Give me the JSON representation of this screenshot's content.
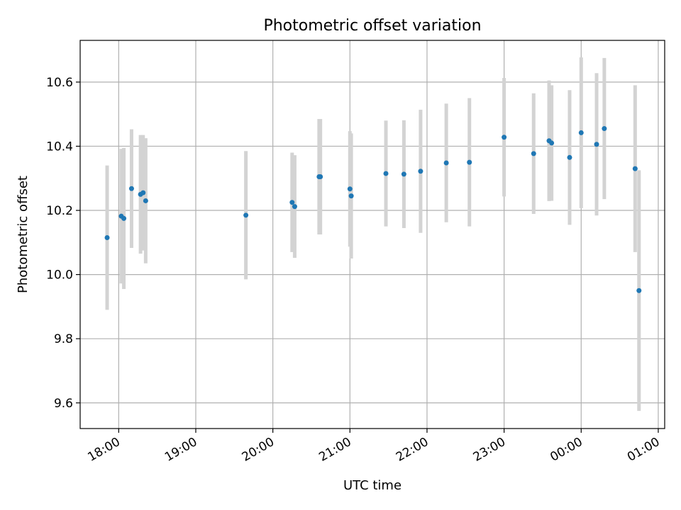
{
  "chart_data": {
    "type": "scatter",
    "title": "Photometric offset variation",
    "xlabel": "UTC time",
    "ylabel": "Photometric offset",
    "x_axis_type": "time",
    "xlim": [
      "17:30",
      "01:05"
    ],
    "ylim": [
      9.52,
      10.73
    ],
    "x_ticks": [
      "18:00",
      "19:00",
      "20:00",
      "21:00",
      "22:00",
      "23:00",
      "00:00",
      "01:00"
    ],
    "y_ticks": [
      "9.6",
      "9.8",
      "10.0",
      "10.2",
      "10.4",
      "10.6"
    ],
    "grid": true,
    "point_color": "#1f77b4",
    "errorbar_color": "#d3d3d3",
    "series": [
      {
        "points": [
          {
            "time": "17:51",
            "y": 10.115,
            "err": 0.225
          },
          {
            "time": "18:02",
            "y": 10.182,
            "err": 0.21
          },
          {
            "time": "18:04",
            "y": 10.175,
            "err": 0.22
          },
          {
            "time": "18:10",
            "y": 10.268,
            "err": 0.185
          },
          {
            "time": "18:17",
            "y": 10.25,
            "err": 0.185
          },
          {
            "time": "18:19",
            "y": 10.255,
            "err": 0.18
          },
          {
            "time": "18:21",
            "y": 10.23,
            "err": 0.195
          },
          {
            "time": "19:39",
            "y": 10.185,
            "err": 0.2
          },
          {
            "time": "20:15",
            "y": 10.225,
            "err": 0.155
          },
          {
            "time": "20:17",
            "y": 10.212,
            "err": 0.16
          },
          {
            "time": "20:36",
            "y": 10.305,
            "err": 0.18
          },
          {
            "time": "20:37",
            "y": 10.305,
            "err": 0.18
          },
          {
            "time": "21:00",
            "y": 10.267,
            "err": 0.18
          },
          {
            "time": "21:01",
            "y": 10.245,
            "err": 0.195
          },
          {
            "time": "21:28",
            "y": 10.315,
            "err": 0.165
          },
          {
            "time": "21:42",
            "y": 10.313,
            "err": 0.168
          },
          {
            "time": "21:55",
            "y": 10.322,
            "err": 0.192
          },
          {
            "time": "22:15",
            "y": 10.348,
            "err": 0.185
          },
          {
            "time": "22:33",
            "y": 10.35,
            "err": 0.2
          },
          {
            "time": "23:00",
            "y": 10.428,
            "err": 0.185
          },
          {
            "time": "23:23",
            "y": 10.377,
            "err": 0.188
          },
          {
            "time": "23:35",
            "y": 10.417,
            "err": 0.188
          },
          {
            "time": "23:37",
            "y": 10.41,
            "err": 0.18
          },
          {
            "time": "23:51",
            "y": 10.365,
            "err": 0.21
          },
          {
            "time": "00:00",
            "y": 10.442,
            "err": 0.235
          },
          {
            "time": "00:12",
            "y": 10.406,
            "err": 0.222
          },
          {
            "time": "00:18",
            "y": 10.455,
            "err": 0.22
          },
          {
            "time": "00:42",
            "y": 10.33,
            "err": 0.26
          },
          {
            "time": "00:45",
            "y": 9.95,
            "err": 0.375
          }
        ]
      }
    ]
  }
}
